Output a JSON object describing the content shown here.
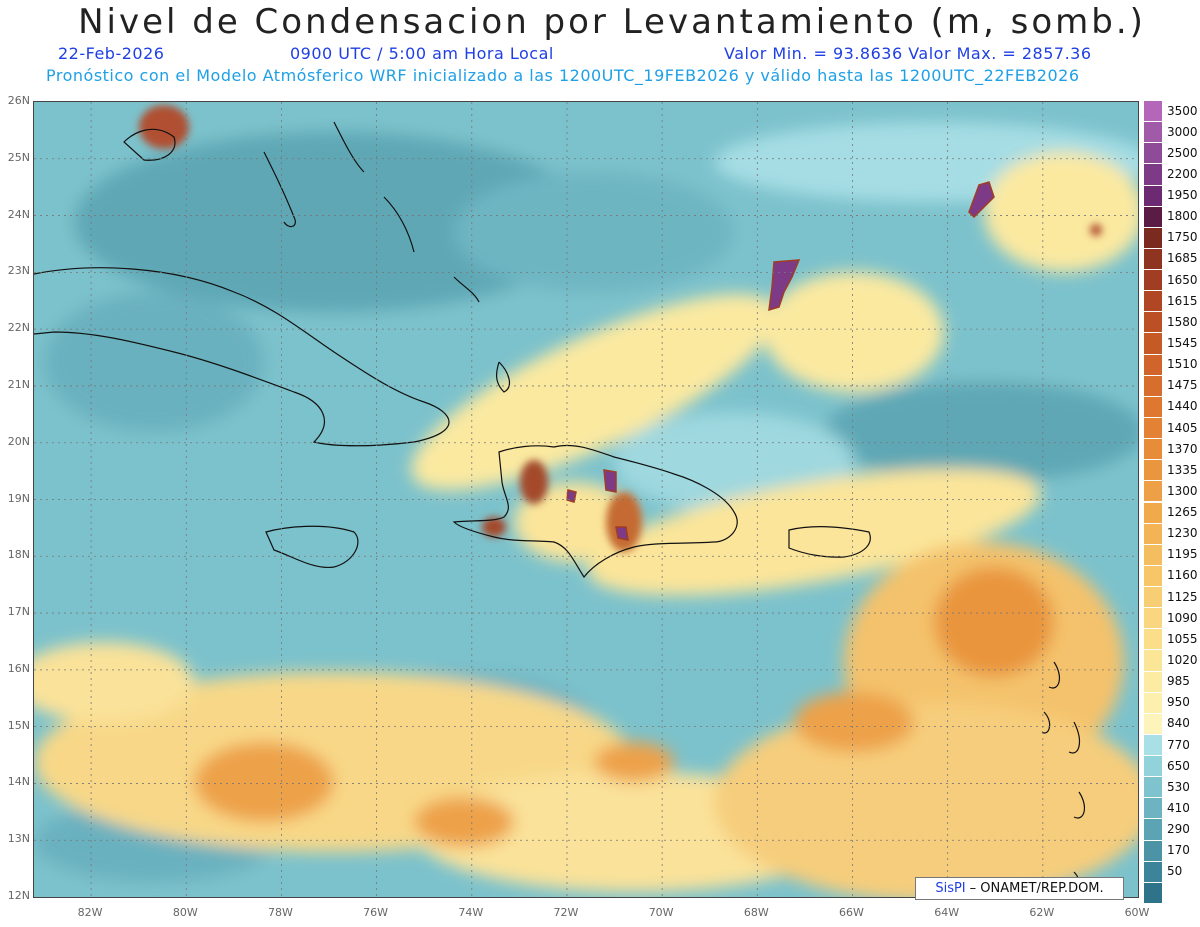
{
  "header": {
    "title": "Nivel de Condensacion por Levantamiento (m, somb.)",
    "date": "22-Feb-2026",
    "time": "0900 UTC / 5:00 am Hora Local",
    "minmax": "Valor Min. = 93.8636   Valor Max. = 2857.36",
    "forecast_info": "Pronóstico con el Modelo Atmósferico WRF inicializado a las 1200UTC_19FEB2026 y válido hasta las  1200UTC_22FEB2026"
  },
  "map": {
    "lat_labels": [
      "26N",
      "25N",
      "24N",
      "23N",
      "22N",
      "21N",
      "20N",
      "19N",
      "18N",
      "17N",
      "16N",
      "15N",
      "14N",
      "13N",
      "12N"
    ],
    "lon_labels": [
      "82W",
      "80W",
      "78W",
      "76W",
      "74W",
      "72W",
      "70W",
      "68W",
      "66W",
      "64W",
      "62W",
      "60W"
    ],
    "lat_range": [
      12,
      26
    ],
    "lon_range": [
      -83.2,
      -60
    ],
    "grid": true
  },
  "legend": {
    "levels": [
      {
        "label": "3500",
        "color": "#b467b8"
      },
      {
        "label": "3000",
        "color": "#a05aa8"
      },
      {
        "label": "2500",
        "color": "#8e4b97"
      },
      {
        "label": "2200",
        "color": "#7d3b87"
      },
      {
        "label": "1950",
        "color": "#6b2a72"
      },
      {
        "label": "1800",
        "color": "#5a1c44"
      },
      {
        "label": "1750",
        "color": "#7a2a1f"
      },
      {
        "label": "1685",
        "color": "#8e3420"
      },
      {
        "label": "1650",
        "color": "#a03d22"
      },
      {
        "label": "1615",
        "color": "#b04624"
      },
      {
        "label": "1580",
        "color": "#bc5025"
      },
      {
        "label": "1545",
        "color": "#c65a27"
      },
      {
        "label": "1510",
        "color": "#d0642a"
      },
      {
        "label": "1475",
        "color": "#d86e2d"
      },
      {
        "label": "1440",
        "color": "#de7830"
      },
      {
        "label": "1405",
        "color": "#e38234"
      },
      {
        "label": "1370",
        "color": "#e78c39"
      },
      {
        "label": "1335",
        "color": "#ea963f"
      },
      {
        "label": "1300",
        "color": "#eda045"
      },
      {
        "label": "1265",
        "color": "#f0aa4c"
      },
      {
        "label": "1230",
        "color": "#f2b455"
      },
      {
        "label": "1195",
        "color": "#f4bd5f"
      },
      {
        "label": "1160",
        "color": "#f6c669"
      },
      {
        "label": "1125",
        "color": "#f7ce74"
      },
      {
        "label": "1090",
        "color": "#f9d67f"
      },
      {
        "label": "1055",
        "color": "#fade8a"
      },
      {
        "label": "1020",
        "color": "#fbe596"
      },
      {
        "label": "985",
        "color": "#fcebA2"
      },
      {
        "label": "950",
        "color": "#fdf0ae"
      },
      {
        "label": "840",
        "color": "#fdf4bb"
      },
      {
        "label": "770",
        "color": "#a8e0e6"
      },
      {
        "label": "650",
        "color": "#92d2db"
      },
      {
        "label": "530",
        "color": "#7fc3cf"
      },
      {
        "label": "410",
        "color": "#6db3c2"
      },
      {
        "label": "290",
        "color": "#5ca3b4"
      },
      {
        "label": "170",
        "color": "#4c93a6"
      },
      {
        "label": "50",
        "color": "#3d8399"
      },
      {
        "label": "",
        "color": "#2f738b"
      }
    ]
  },
  "credit": {
    "brand": "SisPI",
    "text": "– ONAMET/REP.DOM."
  }
}
